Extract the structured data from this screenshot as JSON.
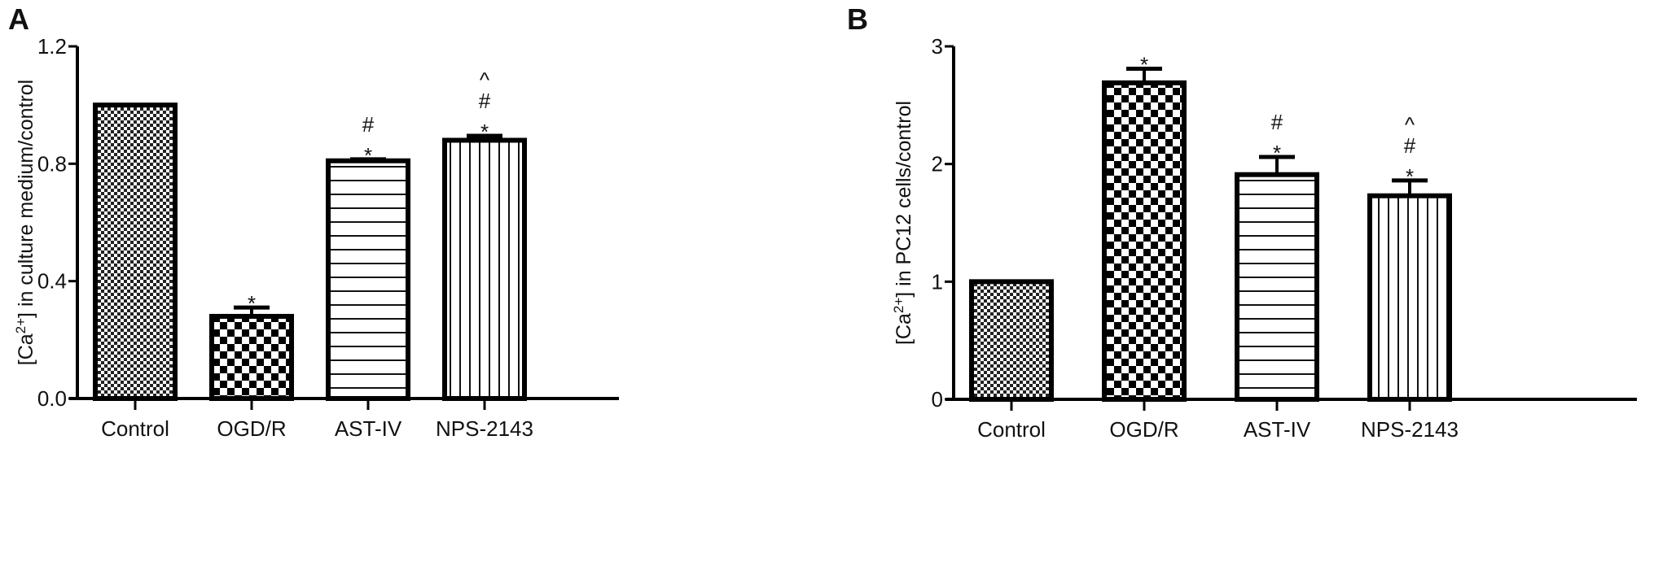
{
  "chart_data": [
    {
      "panel": "A",
      "type": "bar",
      "ylabel": "[Ca2+] in culture medium/control",
      "ylabel_parts": {
        "pre": "[Ca",
        "sup": "2+",
        "post": "] in culture medium/control"
      },
      "ylim": [
        0,
        1.2
      ],
      "yticks": [
        0,
        0.4,
        0.8,
        1.2
      ],
      "ytick_labels": [
        "0.0",
        "0.4",
        "0.8",
        "1.2"
      ],
      "categories": [
        "Control",
        "OGD/R",
        "AST-IV",
        "NPS-2143"
      ],
      "values": [
        1.0,
        0.28,
        0.81,
        0.88
      ],
      "error_upper": [
        1.0,
        0.31,
        0.815,
        0.895
      ],
      "annotations": [
        [],
        [
          "*"
        ],
        [
          "*",
          "#"
        ],
        [
          "*",
          "#",
          "^"
        ]
      ],
      "patterns": [
        "fine-checker",
        "coarse-checker",
        "horizontal-lines",
        "vertical-lines"
      ]
    },
    {
      "panel": "B",
      "type": "bar",
      "ylabel": "[Ca2+] in PC12 cells/control",
      "ylabel_parts": {
        "pre": "[Ca",
        "sup": "2+",
        "post": "] in PC12 cells/control"
      },
      "ylim": [
        0,
        3
      ],
      "yticks": [
        0,
        1,
        2,
        3
      ],
      "ytick_labels": [
        "0",
        "1",
        "2",
        "3"
      ],
      "categories": [
        "Control",
        "OGD/R",
        "AST-IV",
        "NPS-2143"
      ],
      "values": [
        1.0,
        2.69,
        1.91,
        1.73
      ],
      "error_upper": [
        1.0,
        2.81,
        2.06,
        1.86
      ],
      "annotations": [
        [],
        [
          "*"
        ],
        [
          "*",
          "#"
        ],
        [
          "*",
          "#",
          "^"
        ]
      ],
      "patterns": [
        "fine-checker",
        "coarse-checker",
        "horizontal-lines",
        "vertical-lines"
      ]
    }
  ]
}
